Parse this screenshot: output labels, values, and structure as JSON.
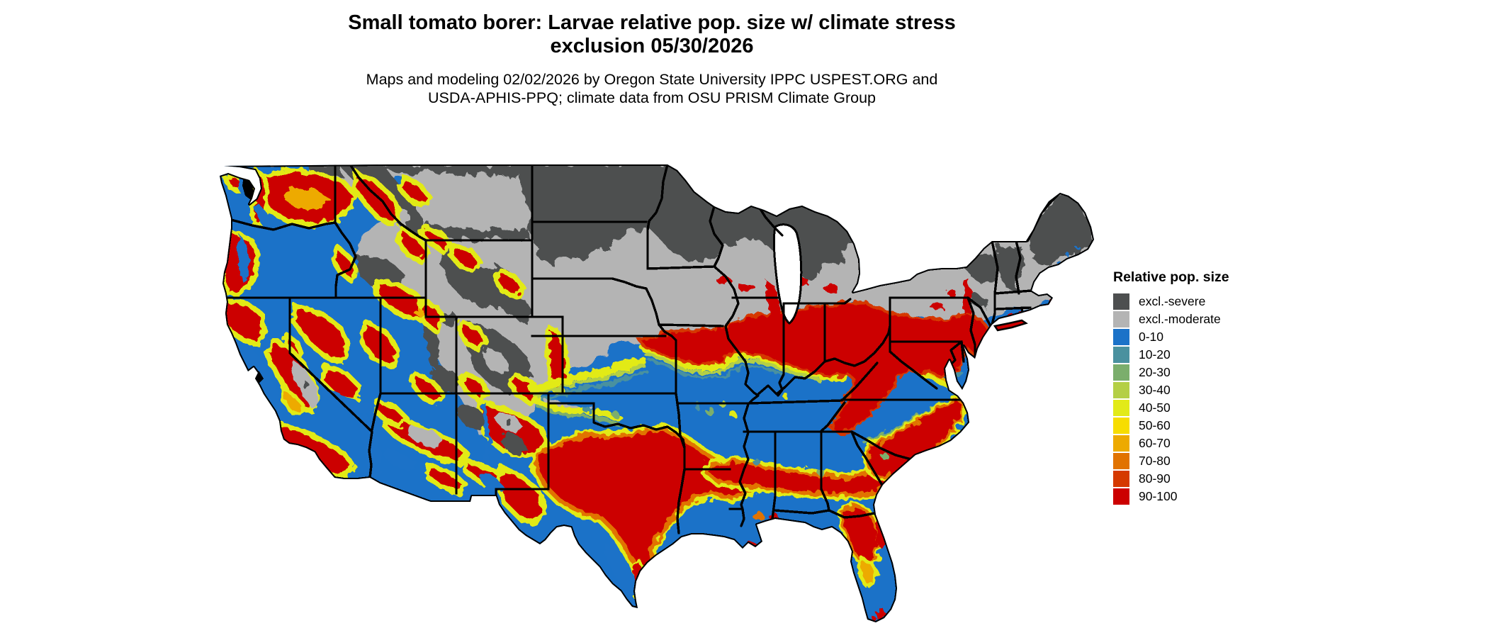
{
  "title": {
    "line1": "Small tomato borer: Larvae relative pop. size w/ climate stress",
    "line2": "exclusion 05/30/2026"
  },
  "subtitle": {
    "line1": "Maps and modeling 02/02/2026 by Oregon State University IPPC USPEST.ORG and",
    "line2": "USDA-APHIS-PPQ; climate data from OSU PRISM Climate Group"
  },
  "legend": {
    "title": "Relative pop. size",
    "items": [
      {
        "key": "sev",
        "label": "excl.-severe",
        "color": "#4D4F50"
      },
      {
        "key": "mod",
        "label": "excl.-moderate",
        "color": "#B4B4B4"
      },
      {
        "key": "b0",
        "label": "0-10",
        "color": "#1B72C8"
      },
      {
        "key": "b10",
        "label": "10-20",
        "color": "#4A919F"
      },
      {
        "key": "b20",
        "label": "20-30",
        "color": "#7BAE6C"
      },
      {
        "key": "b30",
        "label": "30-40",
        "color": "#B4CF45"
      },
      {
        "key": "b40",
        "label": "40-50",
        "color": "#E2EA18"
      },
      {
        "key": "b50",
        "label": "50-60",
        "color": "#F7DD00"
      },
      {
        "key": "b60",
        "label": "60-70",
        "color": "#EDAA00"
      },
      {
        "key": "b70",
        "label": "70-80",
        "color": "#E17300"
      },
      {
        "key": "b80",
        "label": "80-90",
        "color": "#D53900"
      },
      {
        "key": "b90",
        "label": "90-100",
        "color": "#CC0000"
      }
    ]
  },
  "map": {
    "border_color": "#000000",
    "water_color": "#FFFFFF"
  }
}
